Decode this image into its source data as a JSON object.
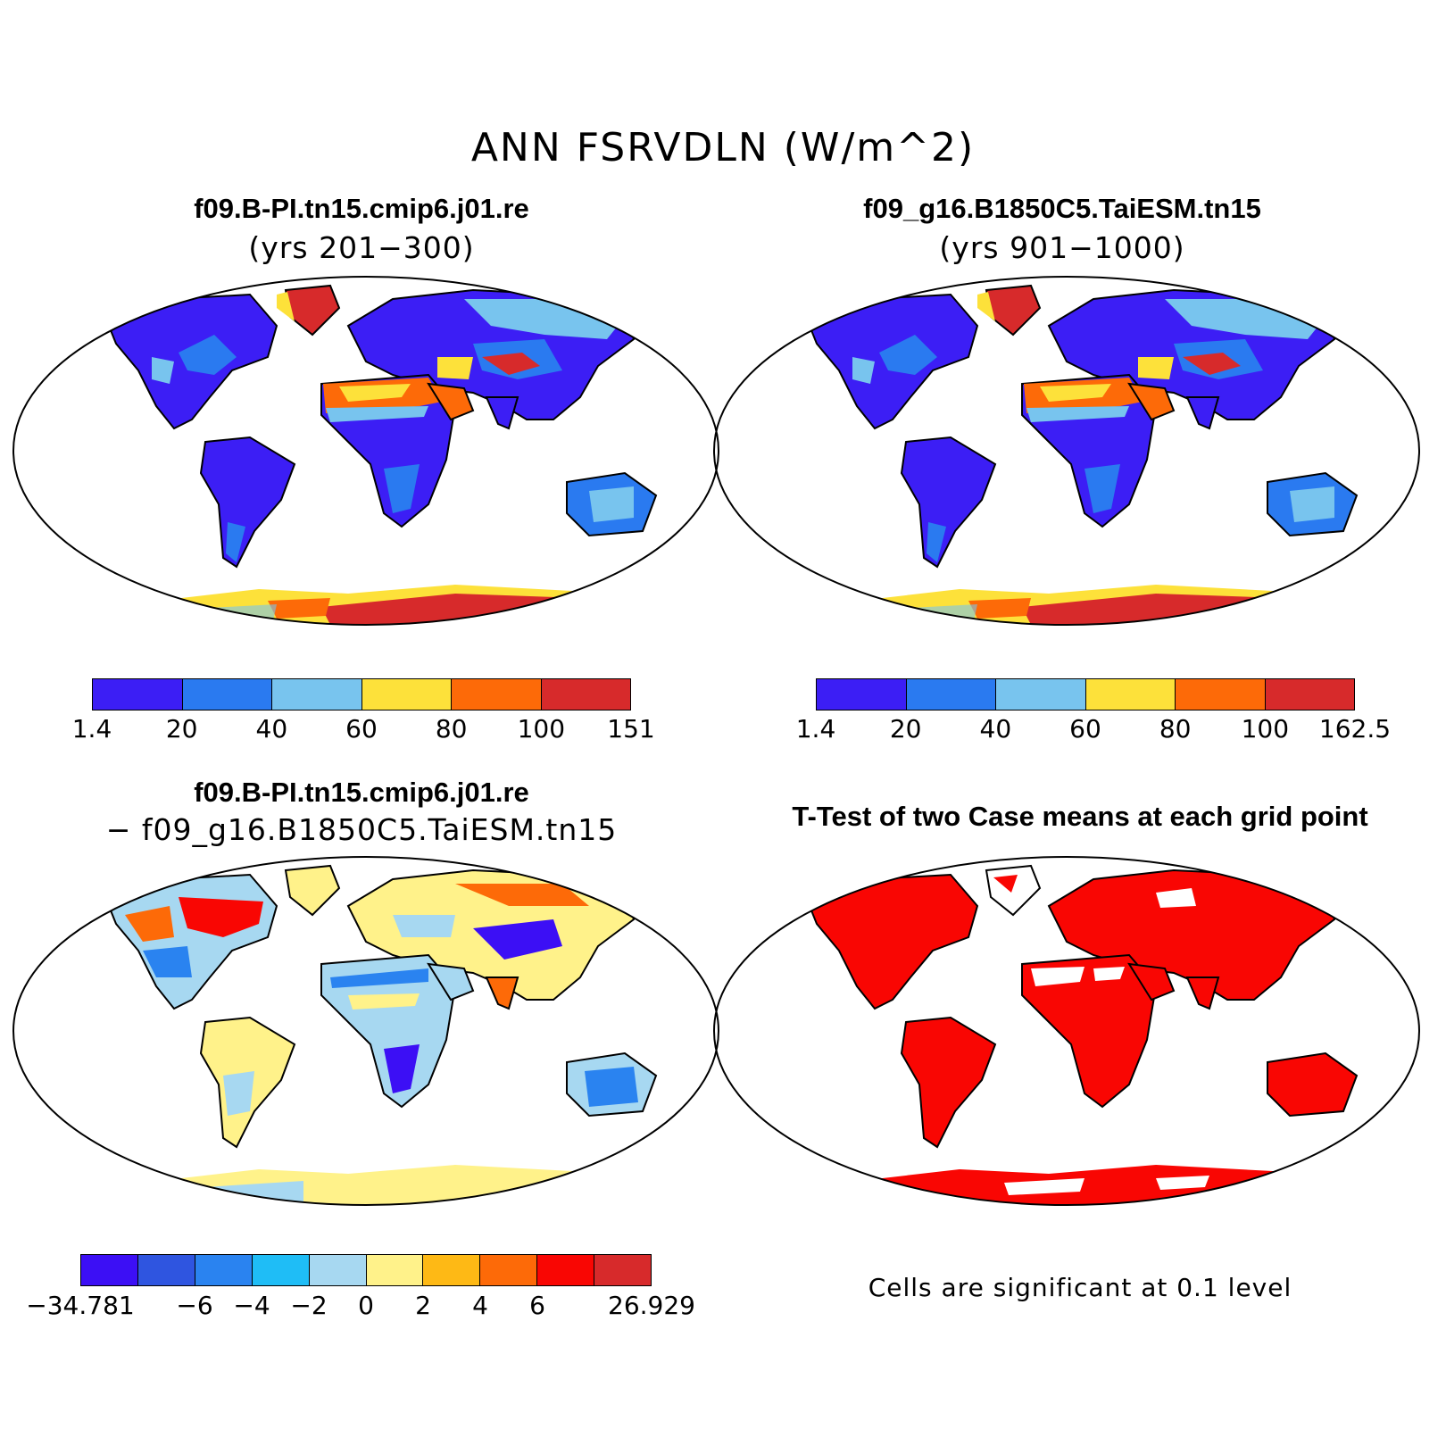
{
  "figure": {
    "title": "ANN FSRVDLN (W/m^2)"
  },
  "panels": [
    {
      "id": "case1",
      "title": "f09.B-PI.tn15.cmip6.j01.re",
      "subtitle": "(yrs 201−300)"
    },
    {
      "id": "case2",
      "title": "f09_g16.B1850C5.TaiESM.tn15",
      "subtitle": "(yrs 901−1000)"
    },
    {
      "id": "diff",
      "title": "f09.B-PI.tn15.cmip6.j01.re",
      "subtitle": "− f09_g16.B1850C5.TaiESM.tn15"
    },
    {
      "id": "ttest",
      "title": "T-Test of two Case means at each grid point",
      "note": "Cells are significant at 0.1 level"
    }
  ],
  "colorbars": {
    "case1": {
      "colors": [
        "#3c1ef5",
        "#2a7af0",
        "#78c4ee",
        "#fde13a",
        "#fd6a08",
        "#d72a2b"
      ],
      "labels": [
        "1.4",
        "20",
        "40",
        "60",
        "80",
        "100",
        "151"
      ]
    },
    "case2": {
      "colors": [
        "#3c1ef5",
        "#2a7af0",
        "#78c4ee",
        "#fde13a",
        "#fd6a08",
        "#d72a2b"
      ],
      "labels": [
        "1.4",
        "20",
        "40",
        "60",
        "80",
        "100",
        "162.5"
      ]
    },
    "diff": {
      "colors": [
        "#3c0ff5",
        "#2f55e0",
        "#2a83f0",
        "#1fbdf6",
        "#a7d8f1",
        "#fff28a",
        "#feb915",
        "#fd6a08",
        "#f90603",
        "#d72a2b"
      ],
      "labels": [
        "−34.781",
        "",
        "−6",
        "−4",
        "−2",
        "0",
        "2",
        "4",
        "6",
        "",
        "26.929"
      ]
    }
  }
}
